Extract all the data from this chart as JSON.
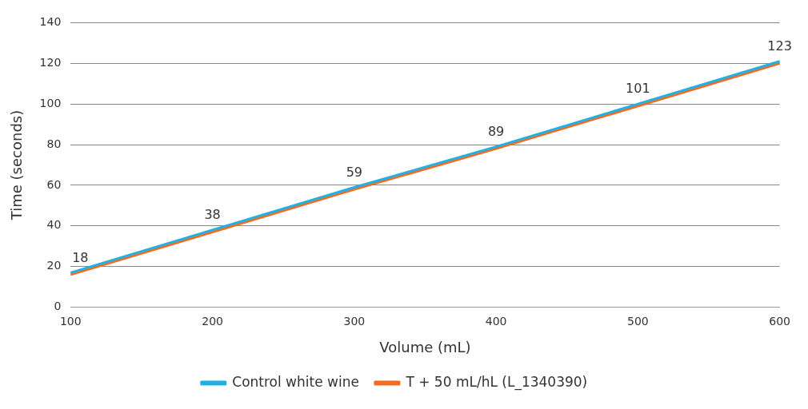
{
  "chart_data": {
    "type": "line",
    "xlabel": "Volume (mL)",
    "ylabel": "Time (seconds)",
    "categories": [
      "100",
      "200",
      "300",
      "400",
      "500",
      "600"
    ],
    "series": [
      {
        "name": "Control white wine",
        "color": "#1fb1e6",
        "values": [
          17,
          38,
          59,
          79,
          100,
          121
        ]
      },
      {
        "name": "T + 50 mL/hL (L_1340390)",
        "color": "#f26b21",
        "values": [
          16,
          37,
          58,
          78,
          99,
          120
        ]
      }
    ],
    "ylim": [
      0,
      140
    ],
    "yticks": [
      0,
      20,
      40,
      60,
      80,
      100,
      120,
      140
    ],
    "annotations": [
      "18",
      "38",
      "59",
      "89",
      "101",
      "123"
    ],
    "grid": "y",
    "legend": "bottom",
    "marker": "none",
    "line_style": "solid"
  }
}
